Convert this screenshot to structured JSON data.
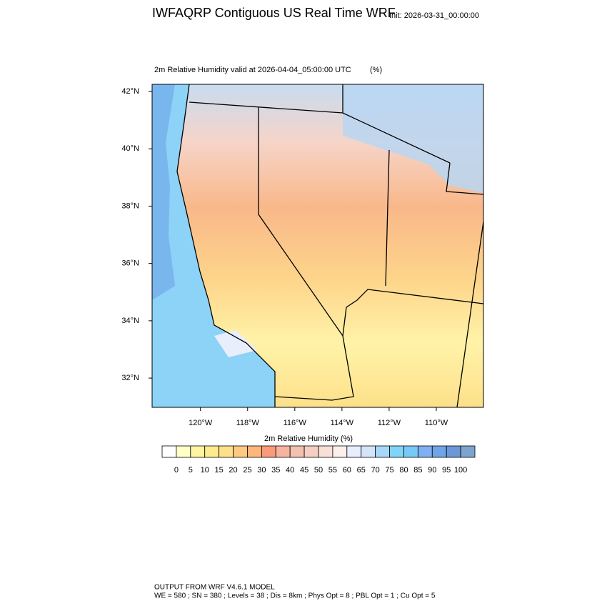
{
  "header": {
    "title": "IWFAQRP Contiguous US Real Time WRF",
    "init": "Init: 2026-03-31_00:00:00"
  },
  "map": {
    "subtitle": "2m Relative Humidity valid at 2026-04-04_05:00:00 UTC",
    "units": "(%)",
    "latlim": [
      30.98,
      42.25
    ],
    "lonlim": [
      -122.05,
      -108.0
    ],
    "lat_ticks": [
      {
        "value": 42,
        "label": "42°N"
      },
      {
        "value": 40,
        "label": "40°N"
      },
      {
        "value": 38,
        "label": "38°N"
      },
      {
        "value": 36,
        "label": "36°N"
      },
      {
        "value": 34,
        "label": "34°N"
      },
      {
        "value": 32,
        "label": "32°N"
      }
    ],
    "lon_ticks": [
      {
        "value": -120,
        "label": "120°W"
      },
      {
        "value": -118,
        "label": "118°W"
      },
      {
        "value": -116,
        "label": "116°W"
      },
      {
        "value": -114,
        "label": "114°W"
      },
      {
        "value": -112,
        "label": "112°W"
      },
      {
        "value": -110,
        "label": "110°W"
      }
    ]
  },
  "colorbar": {
    "title": "2m Relative Humidity  (%)",
    "levels": [
      0,
      5,
      10,
      15,
      20,
      25,
      30,
      35,
      40,
      45,
      50,
      55,
      60,
      65,
      70,
      75,
      80,
      85,
      90,
      95,
      100
    ],
    "colors": [
      "#ffffff",
      "#ffffc8",
      "#fff5a0",
      "#ffeb8c",
      "#ffe08a",
      "#fdca7f",
      "#fdb77a",
      "#fa9a7a",
      "#f5b4a0",
      "#f4c0b0",
      "#f6cfc4",
      "#f8e0d8",
      "#fcefec",
      "#e8eefc",
      "#d4e4fa",
      "#a8d8f8",
      "#80d4f8",
      "#78c8f8",
      "#80b0f0",
      "#70a4e8",
      "#6c98d8",
      "#7ca4cc"
    ]
  },
  "footer": {
    "line1": "OUTPUT FROM WRF V4.6.1 MODEL",
    "line2": "WE = 580 ; SN = 380 ; Levels = 38 ; Dis = 8km ; Phys Opt = 8 ; PBL Opt = 1 ; Cu Opt = 5"
  }
}
